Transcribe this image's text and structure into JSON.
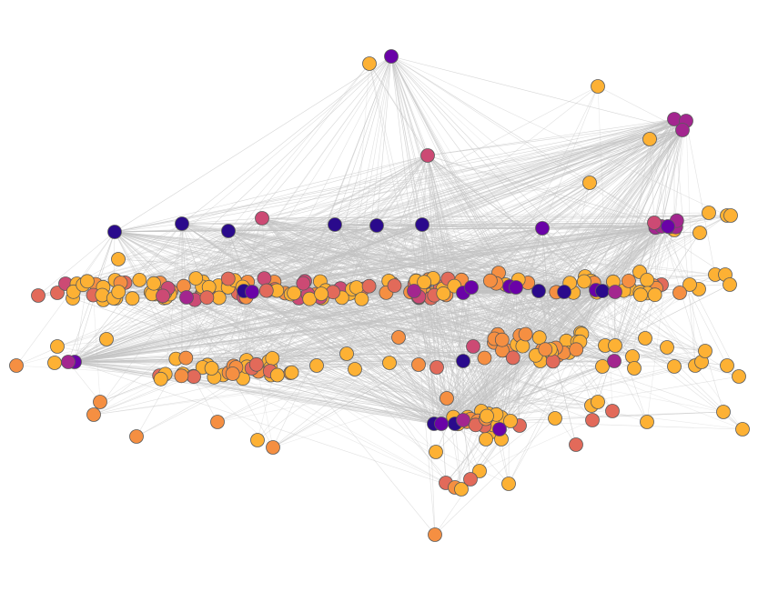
{
  "figure": {
    "kind": "network-graph",
    "background": "#ffffff",
    "edge_color": "#c4c4c4",
    "node_stroke": "#5a5a5a",
    "palette": {
      "c0": "#2a0a8c",
      "c1": "#6a02a7",
      "c2": "#a3268f",
      "c3": "#cc4a74",
      "c4": "#e26a5a",
      "c5": "#f58f42",
      "c6": "#fdb134"
    },
    "color_scale": "plasma",
    "node_count_visible": 330
  }
}
